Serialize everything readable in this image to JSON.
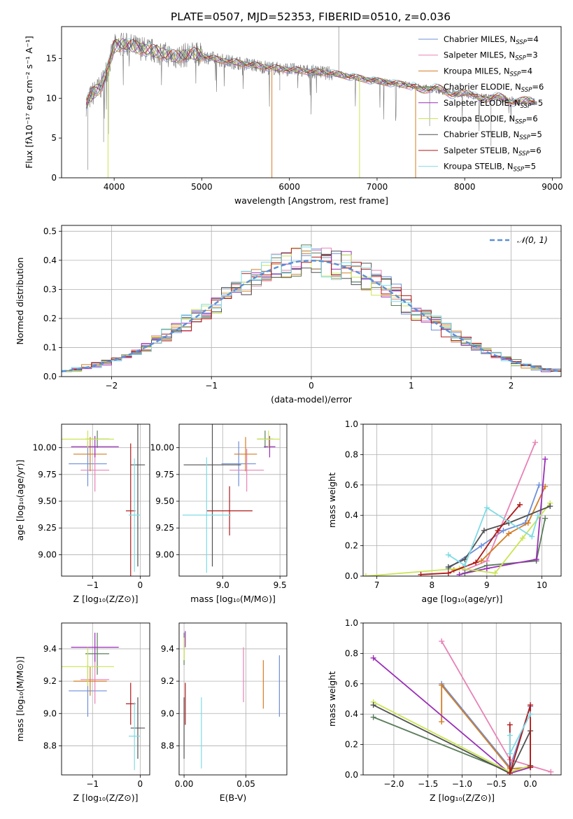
{
  "figure_title": "PLATE=0507, MJD=52353, FIBERID=0510, z=0.036",
  "colors": [
    "#6f8fd9",
    "#e882b5",
    "#d27d24",
    "#5a7d5a",
    "#9b2fb8",
    "#c9e553",
    "#505050",
    "#b01818",
    "#7fdbe5"
  ],
  "chart_data": [
    {
      "id": "spectrum",
      "type": "line",
      "xlabel": "wavelength [Angstrom, rest frame]",
      "ylabel": "Flux [fλ10⁻¹⁷ erg cm⁻² s⁻¹ A⁻¹]",
      "xlim": [
        3400,
        9100
      ],
      "ylim": [
        0,
        19
      ],
      "xticks": [
        4000,
        5000,
        6000,
        7000,
        8000,
        9000
      ],
      "yticks": [
        0,
        5,
        10,
        15
      ],
      "grid": false,
      "legend_position": "top-right",
      "legend": [
        {
          "label": "Chabrier MILES, N",
          "sub": "SSP",
          "tail": "=4"
        },
        {
          "label": "Salpeter MILES, N",
          "sub": "SSP",
          "tail": "=3"
        },
        {
          "label": "Kroupa MILES, N",
          "sub": "SSP",
          "tail": "=4"
        },
        {
          "label": "Chabrier ELODIE, N",
          "sub": "SSP",
          "tail": "=6"
        },
        {
          "label": "Salpeter ELODIE, N",
          "sub": "SSP",
          "tail": "=5"
        },
        {
          "label": "Kroupa ELODIE, N",
          "sub": "SSP",
          "tail": "=6"
        },
        {
          "label": "Chabrier STELIB, N",
          "sub": "SSP",
          "tail": "=5"
        },
        {
          "label": "Salpeter STELIB, N",
          "sub": "SSP",
          "tail": "=6"
        },
        {
          "label": "Kroupa STELIB, N",
          "sub": "SSP",
          "tail": "=5"
        }
      ],
      "continuum": [
        [
          3680,
          9.3
        ],
        [
          3750,
          10.5
        ],
        [
          3850,
          11.5
        ],
        [
          3950,
          14.5
        ],
        [
          4000,
          16.5
        ],
        [
          4100,
          16.8
        ],
        [
          4300,
          16.3
        ],
        [
          4500,
          15.8
        ],
        [
          4700,
          15.2
        ],
        [
          4900,
          15.6
        ],
        [
          5200,
          14.8
        ],
        [
          5500,
          14.3
        ],
        [
          5800,
          13.8
        ],
        [
          6100,
          13.5
        ],
        [
          6500,
          13.1
        ],
        [
          6900,
          12.3
        ],
        [
          7300,
          11.7
        ],
        [
          7700,
          11.0
        ],
        [
          8100,
          10.3
        ],
        [
          8500,
          9.8
        ],
        [
          8800,
          9.5
        ]
      ],
      "data_spikes": [
        [
          3700,
          1.0
        ],
        [
          3880,
          4.5
        ],
        [
          3935,
          5.5
        ],
        [
          5890,
          11.0
        ],
        [
          6563,
          19.0
        ],
        [
          7600,
          6.5
        ],
        [
          8300,
          4.0
        ]
      ],
      "model_drops": [
        [
          3930,
          0,
          "#c9e553"
        ],
        [
          5800,
          0,
          "#d27d24"
        ],
        [
          6800,
          0,
          "#c9e553"
        ],
        [
          7440,
          0,
          "#d27d24"
        ]
      ]
    },
    {
      "id": "residuals",
      "type": "line",
      "xlabel": "(data-model)/error",
      "ylabel": "Normed distribution",
      "xlim": [
        -2.5,
        2.5
      ],
      "ylim": [
        0,
        0.52
      ],
      "xticks": [
        -2,
        -1,
        0,
        1,
        2
      ],
      "yticks": [
        0.0,
        0.1,
        0.2,
        0.3,
        0.4,
        0.5
      ],
      "grid": true,
      "legend": [
        {
          "label": "𝒩(0, 1)"
        }
      ],
      "legend_position": "top-right",
      "bin_width": 0.1
    },
    {
      "id": "age_vs_Z",
      "type": "errorbar",
      "xlabel": "Z [log₁₀(Z/Z⊙)]",
      "ylabel": "age  [log₁₀(age/yr)]",
      "xlim": [
        -1.65,
        0.2
      ],
      "ylim": [
        8.8,
        10.22
      ],
      "xticks": [
        -1,
        0
      ],
      "yticks": [
        9.0,
        9.25,
        9.5,
        9.75,
        10.0
      ],
      "grid": true,
      "points": [
        {
          "x": -1.1,
          "xerr": 0.4,
          "y": 9.85,
          "yerr": 0.21
        },
        {
          "x": -0.95,
          "xerr": 0.3,
          "y": 9.79,
          "yerr": 0.2
        },
        {
          "x": -1.05,
          "xerr": 0.35,
          "y": 9.94,
          "yerr": 0.16
        },
        {
          "x": -0.9,
          "xerr": 0.25,
          "y": 10.08,
          "yerr": 0.08
        },
        {
          "x": -0.95,
          "xerr": 0.5,
          "y": 10.01,
          "yerr": 0.1
        },
        {
          "x": -1.1,
          "xerr": 0.55,
          "y": 10.08,
          "yerr": 0.08
        },
        {
          "x": -0.05,
          "xerr": 0.15,
          "y": 9.84,
          "yerr": 0.95
        },
        {
          "x": -0.2,
          "xerr": 0.1,
          "y": 9.41,
          "yerr": 0.63
        },
        {
          "x": -0.12,
          "xerr": 0.12,
          "y": 9.37,
          "yerr": 0.53
        }
      ]
    },
    {
      "id": "age_vs_mass",
      "type": "errorbar",
      "xlabel": "mass [log₁₀(M/M⊙)]",
      "ylabel": "",
      "xlim": [
        8.62,
        9.56
      ],
      "ylim": [
        8.8,
        10.22
      ],
      "xticks": [
        9.0,
        9.5
      ],
      "yticks": [
        9.0,
        9.25,
        9.5,
        9.75,
        10.0
      ],
      "grid": true,
      "points": [
        {
          "x": 9.14,
          "xerr": 0.15,
          "y": 9.85,
          "yerr": 0.21
        },
        {
          "x": 9.21,
          "xerr": 0.15,
          "y": 9.79,
          "yerr": 0.2
        },
        {
          "x": 9.2,
          "xerr": 0.1,
          "y": 9.94,
          "yerr": 0.16
        },
        {
          "x": 9.37,
          "xerr": 0.07,
          "y": 10.08,
          "yerr": 0.08
        },
        {
          "x": 9.41,
          "xerr": 0.05,
          "y": 10.01,
          "yerr": 0.1
        },
        {
          "x": 9.4,
          "xerr": 0.1,
          "y": 10.08,
          "yerr": 0.08
        },
        {
          "x": 8.91,
          "xerr": 0.25,
          "y": 9.84,
          "yerr": 0.95
        },
        {
          "x": 9.06,
          "xerr": 0.2,
          "y": 9.41,
          "yerr": 0.23
        },
        {
          "x": 8.86,
          "xerr": 0.21,
          "y": 9.37,
          "yerr": 0.54
        }
      ]
    },
    {
      "id": "massweight_vs_age",
      "type": "line",
      "xlabel": "age  [log₁₀(age/yr)]",
      "ylabel": "mass weight",
      "xlim": [
        6.75,
        10.35
      ],
      "ylim": [
        0,
        1
      ],
      "xticks": [
        7,
        8,
        9,
        10
      ],
      "yticks": [
        0.0,
        0.2,
        0.4,
        0.6,
        0.8,
        1.0
      ],
      "grid": true,
      "series": [
        {
          "x": [
            8.3,
            8.9,
            9.3,
            9.7,
            9.95
          ],
          "y": [
            0.05,
            0.2,
            0.3,
            0.35,
            0.6
          ]
        },
        {
          "x": [
            8.6,
            9.0,
            9.88
          ],
          "y": [
            0.04,
            0.1,
            0.88
          ]
        },
        {
          "x": [
            8.4,
            8.9,
            9.4,
            9.75,
            10.06
          ],
          "y": [
            0.04,
            0.1,
            0.28,
            0.35,
            0.59
          ]
        },
        {
          "x": [
            8.6,
            9.0,
            9.9,
            10.06
          ],
          "y": [
            0.02,
            0.07,
            0.1,
            0.38
          ]
        },
        {
          "x": [
            8.5,
            9.0,
            9.9,
            10.06
          ],
          "y": [
            0.01,
            0.05,
            0.11,
            0.77
          ]
        },
        {
          "x": [
            6.8,
            8.5,
            9.15,
            9.65,
            10.15
          ],
          "y": [
            0.0,
            0.05,
            0.02,
            0.25,
            0.48
          ]
        },
        {
          "x": [
            8.3,
            8.6,
            8.95,
            9.4,
            10.15
          ],
          "y": [
            0.06,
            0.11,
            0.3,
            0.35,
            0.46
          ]
        },
        {
          "x": [
            7.8,
            8.3,
            8.8,
            9.2,
            9.6
          ],
          "y": [
            0.01,
            0.02,
            0.09,
            0.3,
            0.47
          ]
        },
        {
          "x": [
            8.3,
            8.6,
            9.0,
            9.82,
            9.93
          ],
          "y": [
            0.14,
            0.07,
            0.45,
            0.26,
            0.4
          ]
        }
      ]
    },
    {
      "id": "mass_vs_Z",
      "type": "errorbar",
      "xlabel": "Z [log₁₀(Z/Z⊙)]",
      "ylabel": "mass [log₁₀(M/M⊙)]",
      "xlim": [
        -1.65,
        0.2
      ],
      "ylim": [
        8.62,
        9.56
      ],
      "xticks": [
        -1,
        0
      ],
      "yticks": [
        8.8,
        9.0,
        9.2,
        9.4
      ],
      "grid": true,
      "points": [
        {
          "x": -1.1,
          "xerr": 0.4,
          "y": 9.14,
          "yerr": 0.16
        },
        {
          "x": -0.95,
          "xerr": 0.3,
          "y": 9.21,
          "yerr": 0.15
        },
        {
          "x": -1.05,
          "xerr": 0.35,
          "y": 9.2,
          "yerr": 0.09
        },
        {
          "x": -0.9,
          "xerr": 0.25,
          "y": 9.37,
          "yerr": 0.13
        },
        {
          "x": -0.95,
          "xerr": 0.5,
          "y": 9.41,
          "yerr": 0.09
        },
        {
          "x": -1.1,
          "xerr": 0.55,
          "y": 9.29,
          "yerr": 0.12
        },
        {
          "x": -0.05,
          "xerr": 0.15,
          "y": 8.91,
          "yerr": 0.19
        },
        {
          "x": -0.2,
          "xerr": 0.1,
          "y": 9.06,
          "yerr": 0.13
        },
        {
          "x": -0.12,
          "xerr": 0.12,
          "y": 8.86,
          "yerr": 0.21
        }
      ]
    },
    {
      "id": "mass_vs_ebv",
      "type": "errorbar",
      "xlabel": "E(B-V)",
      "ylabel": "",
      "xlim": [
        -0.004,
        0.083
      ],
      "ylim": [
        8.62,
        9.56
      ],
      "xticks": [
        0.0,
        0.05
      ],
      "xticklabels": [
        "0.00",
        "0.05"
      ],
      "yticks": [
        8.8,
        9.0,
        9.2,
        9.4
      ],
      "grid": true,
      "points": [
        {
          "x": 0.077,
          "xerr": 0,
          "y": 9.17,
          "yerr": 0.19
        },
        {
          "x": 0.048,
          "xerr": 0,
          "y": 9.24,
          "yerr": 0.17
        },
        {
          "x": 0.064,
          "xerr": 0,
          "y": 9.18,
          "yerr": 0.15
        },
        {
          "x": 0.0,
          "xerr": 0,
          "y": 9.4,
          "yerr": 0.1
        },
        {
          "x": 0.001,
          "xerr": 0,
          "y": 9.46,
          "yerr": 0.05
        },
        {
          "x": 0.0,
          "xerr": 0,
          "y": 9.4,
          "yerr": 0.07
        },
        {
          "x": 0.0,
          "xerr": 0,
          "y": 8.91,
          "yerr": 0.19
        },
        {
          "x": 0.001,
          "xerr": 0,
          "y": 9.06,
          "yerr": 0.13
        },
        {
          "x": 0.014,
          "xerr": 0,
          "y": 8.88,
          "yerr": 0.22
        }
      ]
    },
    {
      "id": "massweight_vs_Z",
      "type": "line",
      "xlabel": "Z [log₁₀(Z/Z⊙)]",
      "ylabel": "mass weight",
      "xlim": [
        -2.45,
        0.45
      ],
      "ylim": [
        0,
        1
      ],
      "xticks": [
        -2.0,
        -1.5,
        -1.0,
        -0.5,
        0.0
      ],
      "yticks": [
        0.0,
        0.2,
        0.4,
        0.6,
        0.8,
        1.0
      ],
      "grid": true,
      "series": [
        {
          "x": [
            -1.3,
            -0.3,
            0.0
          ],
          "y": [
            0.6,
            0.05,
            0.45
          ]
        },
        {
          "x": [
            -1.3,
            -0.3,
            0.3
          ],
          "y": [
            0.88,
            0.1,
            0.02
          ]
        },
        {
          "x": [
            -1.3,
            -1.3,
            -0.3,
            0.0
          ],
          "y": [
            0.35,
            0.59,
            0.04,
            0.05
          ]
        },
        {
          "x": [
            -2.3,
            -0.3,
            0.0
          ],
          "y": [
            0.38,
            0.02,
            0.06
          ]
        },
        {
          "x": [
            -2.3,
            -0.3,
            0.0
          ],
          "y": [
            0.77,
            0.01,
            0.05
          ]
        },
        {
          "x": [
            -2.3,
            -0.3,
            0.0
          ],
          "y": [
            0.48,
            0.02,
            0.06
          ]
        },
        {
          "x": [
            -2.3,
            -0.3,
            0.0,
            0.0
          ],
          "y": [
            0.46,
            0.01,
            0.29,
            0.06
          ]
        },
        {
          "x": [
            -0.3,
            -0.3,
            0.0,
            0.0
          ],
          "y": [
            0.33,
            0.01,
            0.46,
            0.05
          ]
        },
        {
          "x": [
            -0.3,
            -0.3,
            0.0
          ],
          "y": [
            0.26,
            0.14,
            0.4
          ]
        }
      ]
    }
  ]
}
